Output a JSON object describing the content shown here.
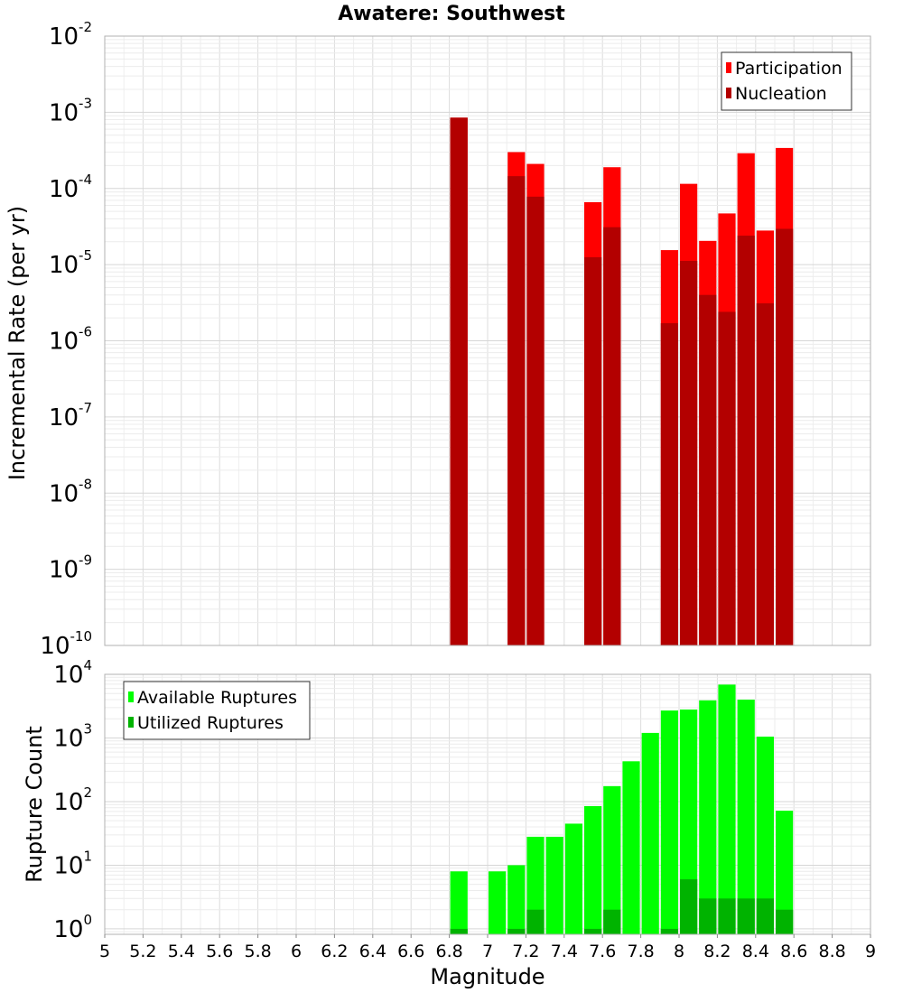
{
  "title": "Awatere: Southwest",
  "chart_data": [
    {
      "type": "bar",
      "panel": "top",
      "ylabel": "Incremental Rate (per yr)",
      "yscale": "log",
      "ylim": [
        1e-10,
        0.01
      ],
      "xlim": [
        5,
        9
      ],
      "bin_width": 0.1,
      "grid": true,
      "legend_position": "top-right",
      "y_ticks": [
        {
          "base": "10",
          "exp": "-2"
        },
        {
          "base": "10",
          "exp": "-3"
        },
        {
          "base": "10",
          "exp": "-4"
        },
        {
          "base": "10",
          "exp": "-5"
        },
        {
          "base": "10",
          "exp": "-6"
        },
        {
          "base": "10",
          "exp": "-7"
        },
        {
          "base": "10",
          "exp": "-8"
        },
        {
          "base": "10",
          "exp": "-9"
        },
        {
          "base": "10",
          "exp": "-10"
        }
      ],
      "series": [
        {
          "name": "Participation",
          "color": "#ff0000",
          "x": [
            6.85,
            7.15,
            7.25,
            7.55,
            7.65,
            7.95,
            8.05,
            8.15,
            8.25,
            8.35,
            8.45,
            8.55
          ],
          "values": [
            0.00085,
            0.0003,
            0.00021,
            6.6e-05,
            0.00019,
            1.55e-05,
            0.000115,
            2.05e-05,
            4.7e-05,
            0.00029,
            2.8e-05,
            0.00034
          ]
        },
        {
          "name": "Nucleation",
          "color": "#b30000",
          "x": [
            6.85,
            7.15,
            7.25,
            7.55,
            7.65,
            7.95,
            8.05,
            8.15,
            8.25,
            8.35,
            8.45,
            8.55
          ],
          "values": [
            0.00085,
            0.000145,
            7.8e-05,
            1.25e-05,
            3.1e-05,
            1.7e-06,
            1.12e-05,
            4e-06,
            2.4e-06,
            2.4e-05,
            3.1e-06,
            2.95e-05
          ]
        }
      ]
    },
    {
      "type": "bar",
      "panel": "bottom",
      "xlabel": "Magnitude",
      "ylabel": "Rupture Count",
      "yscale": "log",
      "ylim": [
        0.82,
        10000
      ],
      "xlim": [
        5,
        9
      ],
      "bin_width": 0.1,
      "grid": true,
      "legend_position": "top-left",
      "x_ticks": [
        "5",
        "5.2",
        "5.4",
        "5.6",
        "5.8",
        "6",
        "6.2",
        "6.4",
        "6.6",
        "6.8",
        "7",
        "7.2",
        "7.4",
        "7.6",
        "7.8",
        "8",
        "8.2",
        "8.4",
        "8.6",
        "8.8",
        "9"
      ],
      "y_ticks": [
        {
          "base": "10",
          "exp": "4",
          "value": 10000
        },
        {
          "base": "10",
          "exp": "3",
          "value": 1000
        },
        {
          "base": "10",
          "exp": "2",
          "value": 100
        },
        {
          "base": "10",
          "exp": "1",
          "value": 10
        },
        {
          "base": "10",
          "exp": "0",
          "value": 1
        }
      ],
      "series": [
        {
          "name": "Available Ruptures",
          "color": "#00ff00",
          "x": [
            6.85,
            7.05,
            7.15,
            7.25,
            7.35,
            7.45,
            7.55,
            7.65,
            7.75,
            7.85,
            7.95,
            8.05,
            8.15,
            8.25,
            8.35,
            8.45,
            8.55
          ],
          "values": [
            8,
            8,
            10,
            28,
            28,
            45,
            85,
            175,
            430,
            1200,
            2700,
            2800,
            3900,
            6900,
            4000,
            1050,
            72
          ]
        },
        {
          "name": "Utilized Ruptures",
          "color": "#00b300",
          "x": [
            6.85,
            7.15,
            7.25,
            7.55,
            7.65,
            7.95,
            8.05,
            8.15,
            8.25,
            8.35,
            8.45,
            8.55
          ],
          "values": [
            1,
            1,
            2,
            1,
            2,
            1,
            6,
            3,
            3,
            3,
            3,
            2
          ]
        }
      ]
    }
  ]
}
